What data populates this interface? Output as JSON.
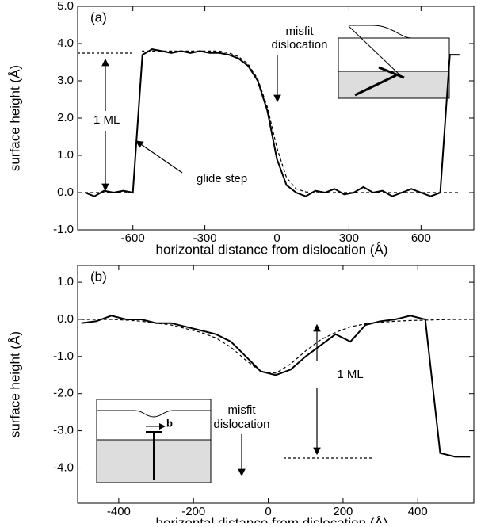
{
  "chart_data": [
    {
      "type": "line",
      "panel_label": "(a)",
      "xlabel": "horizontal distance from dislocation (Å)",
      "ylabel": "surface height (Å)",
      "xlim": [
        -830,
        820
      ],
      "ylim": [
        -1,
        5
      ],
      "xticks": [
        -600,
        -300,
        0,
        300,
        600
      ],
      "yticks": [
        {
          "value": -1,
          "label": "-1.0"
        },
        {
          "value": 0,
          "label": "0.0"
        },
        {
          "value": 1,
          "label": "1.0"
        },
        {
          "value": 2,
          "label": "2.0"
        },
        {
          "value": 3,
          "label": "3.0"
        },
        {
          "value": 4,
          "label": "4.0"
        },
        {
          "value": 5,
          "label": "5.0"
        }
      ],
      "annotations": [
        "misfit",
        "dislocation",
        "glide step",
        "1 ML"
      ],
      "x": [
        -800,
        -760,
        -720,
        -680,
        -640,
        -600,
        -560,
        -520,
        -480,
        -440,
        -400,
        -360,
        -320,
        -280,
        -240,
        -200,
        -160,
        -120,
        -80,
        -40,
        0,
        40,
        80,
        120,
        160,
        200,
        240,
        280,
        320,
        360,
        400,
        440,
        480,
        520,
        560,
        600,
        640,
        680,
        720,
        760
      ],
      "series": [
        {
          "color": "#000000",
          "style": "solid",
          "values": [
            0.0,
            -0.1,
            0.05,
            0.0,
            0.05,
            0.0,
            3.7,
            3.85,
            3.8,
            3.75,
            3.8,
            3.75,
            3.8,
            3.75,
            3.75,
            3.7,
            3.6,
            3.4,
            3.0,
            2.2,
            0.9,
            0.2,
            0.0,
            -0.1,
            0.05,
            0.0,
            0.1,
            -0.05,
            0.0,
            0.15,
            0.0,
            0.05,
            -0.1,
            0.0,
            0.1,
            0.0,
            -0.1,
            0.0,
            3.7,
            3.7
          ]
        },
        {
          "color": "#000000",
          "style": "dashed",
          "values": [
            0,
            0,
            0,
            0,
            0,
            0,
            3.8,
            3.8,
            3.8,
            3.8,
            3.8,
            3.8,
            3.8,
            3.8,
            3.8,
            3.75,
            3.65,
            3.45,
            3.05,
            2.3,
            1.2,
            0.4,
            0.1,
            0.02,
            0,
            0,
            0,
            0,
            0,
            0,
            0,
            0,
            0,
            0,
            0,
            0,
            0,
            0,
            0,
            0
          ]
        }
      ]
    },
    {
      "type": "line",
      "panel_label": "(b)",
      "xlabel": "horizontal distance from dislocation (Å)",
      "ylabel": "surface height (Å)",
      "xlim": [
        -510,
        550
      ],
      "ylim": [
        -4.95,
        1.45
      ],
      "xticks": [
        -400,
        -200,
        0,
        200,
        400
      ],
      "yticks": [
        {
          "value": 1,
          "label": "1.0"
        },
        {
          "value": 0,
          "label": "0.0"
        },
        {
          "value": -1,
          "label": "-1.0"
        },
        {
          "value": -2,
          "label": "-2.0"
        },
        {
          "value": -3,
          "label": "-3.0"
        },
        {
          "value": -4,
          "label": "-4.0"
        }
      ],
      "annotations": [
        "misfit",
        "dislocation",
        "1 ML"
      ],
      "x": [
        -500,
        -460,
        -420,
        -380,
        -340,
        -300,
        -260,
        -220,
        -180,
        -140,
        -100,
        -60,
        -20,
        20,
        60,
        100,
        140,
        180,
        220,
        260,
        300,
        340,
        380,
        420,
        460,
        500,
        540
      ],
      "series": [
        {
          "color": "#000000",
          "style": "solid",
          "values": [
            -0.1,
            -0.05,
            0.1,
            0.0,
            0.0,
            -0.1,
            -0.1,
            -0.2,
            -0.3,
            -0.4,
            -0.6,
            -1.0,
            -1.4,
            -1.5,
            -1.35,
            -1.0,
            -0.7,
            -0.4,
            -0.6,
            -0.15,
            -0.05,
            0.0,
            0.1,
            0.0,
            -3.6,
            -3.7,
            -3.7
          ]
        },
        {
          "color": "#000000",
          "style": "dashed",
          "values": [
            0,
            0,
            0,
            -0.02,
            -0.05,
            -0.1,
            -0.15,
            -0.25,
            -0.35,
            -0.5,
            -0.75,
            -1.1,
            -1.4,
            -1.45,
            -1.2,
            -0.85,
            -0.55,
            -0.35,
            -0.2,
            -0.12,
            -0.08,
            -0.05,
            -0.03,
            -0.02,
            -0.01,
            0,
            0
          ]
        }
      ]
    }
  ]
}
